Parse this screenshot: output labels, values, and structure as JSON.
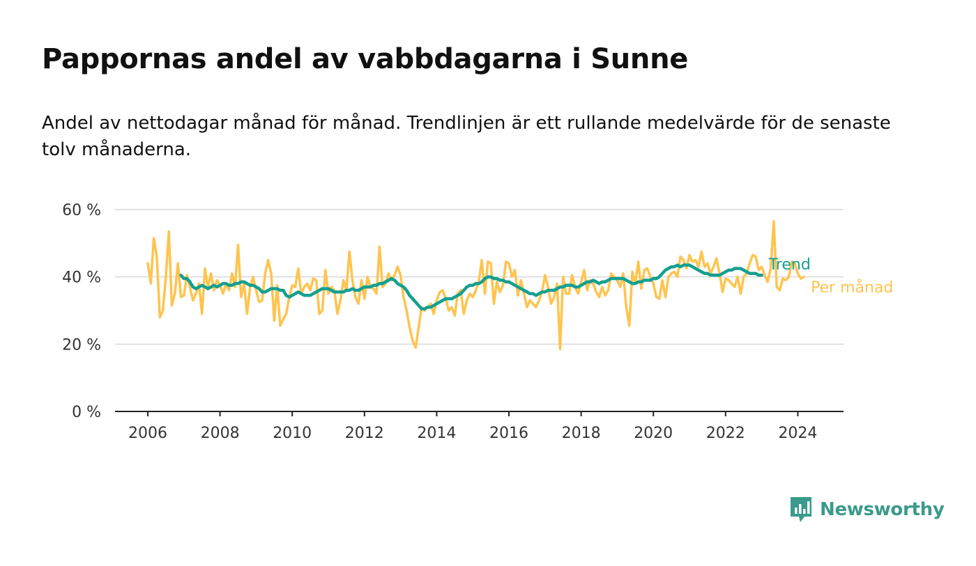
{
  "title": "Pappornas andel av vabbdagarna i Sunne",
  "subtitle": "Andel av nettodagar månad för månad. Trendlinjen är ett rullande medelvärde för de senaste tolv månaderna.",
  "brand": {
    "name": "Newsworthy",
    "color": "#3a9a8c"
  },
  "chart_data": {
    "type": "line",
    "title": "Pappornas andel av vabbdagarna i Sunne",
    "xlabel": "",
    "ylabel": "",
    "x_range": [
      2006.0,
      2024.33
    ],
    "ylim": [
      0,
      60
    ],
    "y_ticks": [
      0,
      20,
      40,
      60
    ],
    "y_tick_labels": [
      "0 %",
      "20 %",
      "40 %",
      "60 %"
    ],
    "x_ticks": [
      2006,
      2008,
      2010,
      2012,
      2014,
      2016,
      2018,
      2020,
      2022,
      2024
    ],
    "x_tick_labels": [
      "2006",
      "2008",
      "2010",
      "2012",
      "2014",
      "2016",
      "2018",
      "2020",
      "2022",
      "2024"
    ],
    "grid": true,
    "legend": "right-end labels",
    "series": [
      {
        "name": "Per månad",
        "color": "#fec44f",
        "start": [
          2006,
          1
        ],
        "values": [
          44,
          38,
          51.5,
          46,
          28,
          30,
          40,
          53.5,
          31.5,
          35,
          44,
          34,
          34.5,
          40.5,
          37,
          33,
          35,
          38,
          29,
          42.5,
          37,
          41,
          36,
          39,
          37.5,
          35,
          38,
          36,
          41,
          37,
          49.5,
          34,
          38,
          29,
          37,
          40,
          36,
          32.5,
          33,
          41,
          45,
          41,
          27,
          37.5,
          25.5,
          27.5,
          29,
          34,
          37.5,
          37,
          42.5,
          35,
          37,
          38,
          36,
          39.5,
          39,
          29,
          30,
          42,
          35,
          37,
          36,
          29,
          33,
          39,
          36,
          47.5,
          39,
          34,
          32,
          39,
          33.5,
          40,
          37,
          36.5,
          35,
          49,
          37,
          38,
          41,
          39,
          40.5,
          43,
          40.5,
          34,
          30,
          25,
          21,
          19,
          25,
          31,
          30,
          31,
          32,
          29,
          33,
          35.5,
          36,
          33.5,
          30,
          31,
          28.5,
          35,
          36,
          29,
          33,
          35,
          34,
          36,
          38.5,
          45,
          35,
          44.5,
          44,
          32,
          38.5,
          35.5,
          37.5,
          44.5,
          44,
          40,
          42,
          34.5,
          39,
          35,
          31,
          33,
          32,
          31,
          33,
          35.5,
          40.5,
          37,
          32,
          34,
          38,
          18.5,
          40,
          35,
          35,
          40.5,
          37,
          35,
          38.5,
          42,
          36,
          39,
          38,
          35.5,
          34,
          37,
          34.5,
          36,
          41,
          40,
          39,
          37,
          41,
          31,
          25.5,
          41.5,
          38,
          44.5,
          36.5,
          42,
          42.5,
          40,
          38,
          34,
          33.5,
          39,
          34,
          40,
          41,
          41.5,
          40,
          46,
          45,
          42.5,
          46.5,
          44.5,
          45,
          43,
          47.5,
          43,
          44,
          41,
          43,
          45.5,
          41,
          35.5,
          39.5,
          39,
          38,
          37,
          40,
          35,
          40,
          41,
          44,
          46.5,
          46,
          42,
          43,
          40.5,
          38.5,
          42.5,
          56.5,
          37,
          36,
          39.5,
          39,
          40,
          44.5,
          44,
          41,
          39.5,
          40
        ]
      },
      {
        "name": "Trend",
        "color": "#159f8f",
        "start": [
          2006,
          12
        ],
        "values": [
          40.5,
          39.5,
          39.5,
          38.5,
          37,
          36.5,
          37,
          37.5,
          37,
          36.5,
          37,
          37.5,
          37,
          37.5,
          38,
          38,
          37.5,
          37.5,
          38,
          38,
          38.5,
          38.5,
          38,
          37.5,
          37.5,
          37,
          36.5,
          35.5,
          35.5,
          36,
          36.5,
          36.5,
          36.5,
          36,
          36,
          34.5,
          34,
          34.5,
          35,
          35.5,
          35,
          34.5,
          34.5,
          34.5,
          35,
          35.5,
          36,
          36.5,
          36.5,
          36.5,
          36,
          35.5,
          35.5,
          35.5,
          35.5,
          36,
          36,
          36.5,
          36,
          36,
          36.5,
          37,
          37,
          37,
          37.5,
          37.5,
          38,
          38,
          38.5,
          39,
          39.5,
          39,
          38,
          37.5,
          37,
          36,
          34.5,
          33.5,
          32.5,
          31.5,
          30.5,
          30.5,
          31,
          31,
          31.5,
          32,
          32.5,
          33,
          33.5,
          33.5,
          33.5,
          34,
          34.5,
          35,
          36,
          37,
          37.5,
          37.5,
          38,
          38,
          38.5,
          39.5,
          40,
          40,
          39.5,
          39.5,
          39,
          39,
          38.5,
          38.5,
          38,
          37.5,
          37,
          36.5,
          36,
          35.5,
          35,
          35,
          34.5,
          35,
          35.5,
          35.5,
          36,
          36,
          36,
          36.5,
          37,
          37,
          37.5,
          37.5,
          37.5,
          37,
          37,
          37.5,
          38,
          38.5,
          38.5,
          39,
          38.5,
          38,
          38.5,
          38.5,
          39,
          39.5,
          39.5,
          39.5,
          39.5,
          39.5,
          39,
          38.5,
          38,
          38,
          38.5,
          38.5,
          39,
          39,
          39,
          39.5,
          39.5,
          40,
          41,
          42,
          42.5,
          43,
          43,
          43.5,
          43,
          43.5,
          43.5,
          43.5,
          43,
          42.5,
          42,
          41.5,
          41,
          41,
          40.5,
          40.5,
          40.5,
          40.5,
          41,
          41.5,
          42,
          42,
          42.5,
          42.5,
          42.5,
          42,
          41.5,
          41,
          41,
          41,
          40.5,
          40.5
        ]
      }
    ]
  }
}
